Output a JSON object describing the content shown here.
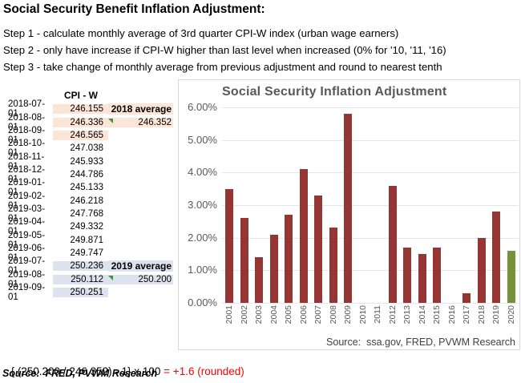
{
  "page": {
    "title": "Social Security Benefit Inflation Adjustment:",
    "steps": [
      "Step 1 - calculate monthly average of 3rd quarter CPI-W index (urban wage earners)",
      "Step 2 - only have increase if CPI-W higher than last level when increased (0% for '10, '11, '16)",
      "Step 3 - take change of monthly average from previous adjustment and round to nearest tenth"
    ],
    "formula": {
      "expression": "{ (250.200 / 246.352) - 1} x 100 ",
      "result": "= +1.6 (rounded)"
    },
    "source_note": "Source:  FRED, PVWM Research"
  },
  "table": {
    "header": "CPI - W",
    "rows": [
      {
        "date": "2018-07-01",
        "value": "246.155",
        "highlight": "peach",
        "annotation": "2018 average",
        "annotation_bold": true,
        "annotation_highlight": "peach",
        "marker": false
      },
      {
        "date": "2018-08-01",
        "value": "246.336",
        "highlight": "peach",
        "annotation": "246.352",
        "annotation_bold": false,
        "annotation_highlight": "peach",
        "marker": true
      },
      {
        "date": "2018-09-01",
        "value": "246.565",
        "highlight": "peach",
        "annotation": "",
        "annotation_bold": false,
        "annotation_highlight": "",
        "marker": false
      },
      {
        "date": "2018-10-01",
        "value": "247.038",
        "highlight": "",
        "annotation": "",
        "annotation_bold": false,
        "annotation_highlight": "",
        "marker": false
      },
      {
        "date": "2018-11-01",
        "value": "245.933",
        "highlight": "",
        "annotation": "",
        "annotation_bold": false,
        "annotation_highlight": "",
        "marker": false
      },
      {
        "date": "2018-12-01",
        "value": "244.786",
        "highlight": "",
        "annotation": "",
        "annotation_bold": false,
        "annotation_highlight": "",
        "marker": false
      },
      {
        "date": "2019-01-01",
        "value": "245.133",
        "highlight": "",
        "annotation": "",
        "annotation_bold": false,
        "annotation_highlight": "",
        "marker": false
      },
      {
        "date": "2019-02-01",
        "value": "246.218",
        "highlight": "",
        "annotation": "",
        "annotation_bold": false,
        "annotation_highlight": "",
        "marker": false
      },
      {
        "date": "2019-03-01",
        "value": "247.768",
        "highlight": "",
        "annotation": "",
        "annotation_bold": false,
        "annotation_highlight": "",
        "marker": false
      },
      {
        "date": "2019-04-01",
        "value": "249.332",
        "highlight": "",
        "annotation": "",
        "annotation_bold": false,
        "annotation_highlight": "",
        "marker": false
      },
      {
        "date": "2019-05-01",
        "value": "249.871",
        "highlight": "",
        "annotation": "",
        "annotation_bold": false,
        "annotation_highlight": "",
        "marker": false
      },
      {
        "date": "2019-06-01",
        "value": "249.747",
        "highlight": "",
        "annotation": "",
        "annotation_bold": false,
        "annotation_highlight": "",
        "marker": false
      },
      {
        "date": "2019-07-01",
        "value": "250.236",
        "highlight": "blue",
        "annotation": "2019 average",
        "annotation_bold": true,
        "annotation_highlight": "blue",
        "marker": false
      },
      {
        "date": "2019-08-01",
        "value": "250.112",
        "highlight": "blue",
        "annotation": "250.200",
        "annotation_bold": false,
        "annotation_highlight": "blue",
        "marker": true
      },
      {
        "date": "2019-09-01",
        "value": "250.251",
        "highlight": "blue",
        "annotation": "",
        "annotation_bold": false,
        "annotation_highlight": "",
        "marker": false
      }
    ],
    "highlight_colors": {
      "peach": "#FCE4D6",
      "blue": "#DCE3EE"
    },
    "marker_color": "#3A9639"
  },
  "chart_data": {
    "type": "bar",
    "title": "Social Security Inflation Adjustment",
    "categories": [
      "2001",
      "2002",
      "2003",
      "2004",
      "2005",
      "2006",
      "2007",
      "2008",
      "2009",
      "2010",
      "2011",
      "2012",
      "2013",
      "2014",
      "2015",
      "2016",
      "2017",
      "2018",
      "2019",
      "2020"
    ],
    "values": [
      3.5,
      2.6,
      1.4,
      2.1,
      2.7,
      4.1,
      3.3,
      2.3,
      5.8,
      0,
      0,
      3.6,
      1.7,
      1.5,
      1.7,
      0,
      0.3,
      2.0,
      2.8,
      1.6
    ],
    "highlight_index": 19,
    "xlabel": "",
    "ylabel": "",
    "ylim": [
      0,
      6
    ],
    "ytick_labels": [
      "6.00%",
      "5.00%",
      "4.00%",
      "3.00%",
      "2.00%",
      "1.00%",
      "0.00%"
    ],
    "grid": true,
    "legend": false,
    "source": "Source:  ssa.gov, FRED, PVWM Research",
    "colors": {
      "bar": "#963634",
      "highlight_bar": "#76933C",
      "gridline": "#E6E6E6",
      "axis_text": "#595959"
    }
  }
}
